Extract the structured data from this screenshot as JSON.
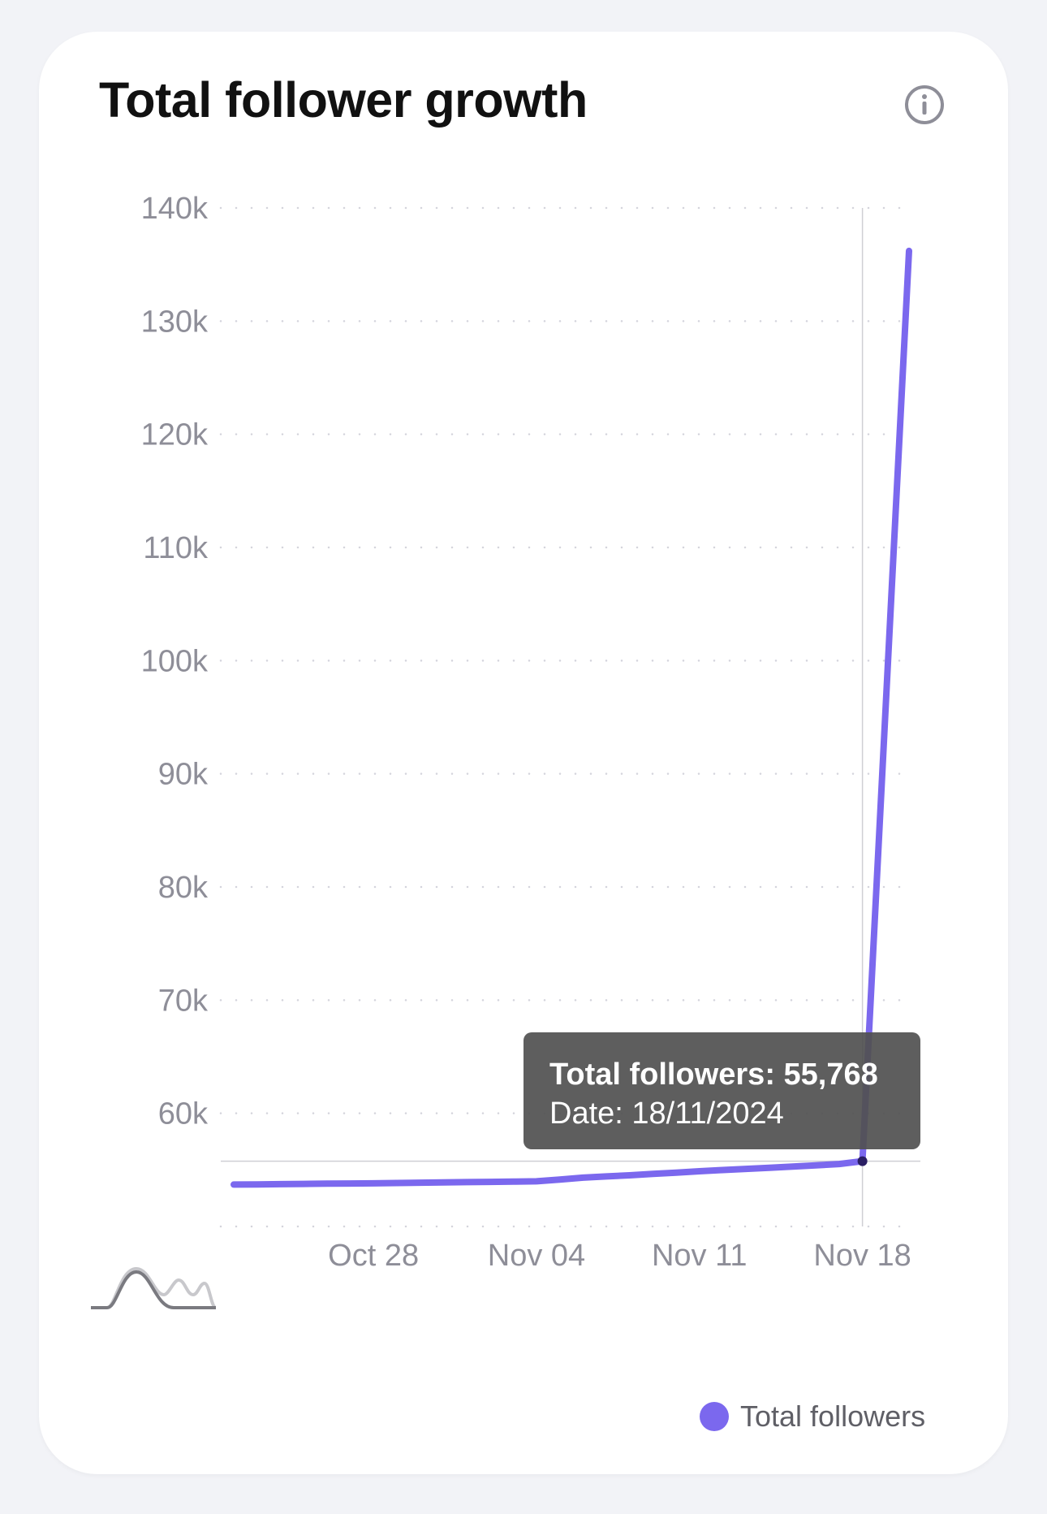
{
  "header": {
    "title": "Total follower growth",
    "info_icon": "info-icon"
  },
  "tooltip": {
    "line1": "Total followers: 55,768",
    "line2": "Date: 18/11/2024"
  },
  "legend": {
    "label": "Total followers",
    "color": "#7b68ee"
  },
  "chart_type_toggle": {
    "icon": "area-chart-icon"
  },
  "colors": {
    "series": "#7b68ee",
    "series_highlight": "#2a1e63",
    "grid": "#d4d4dc",
    "axis_text": "#8e8e98",
    "tooltip_bg": "#505050"
  },
  "chart_data": {
    "type": "line",
    "title": "Total follower growth",
    "xlabel": "",
    "ylabel": "",
    "ylim": [
      50000,
      140000
    ],
    "grid": true,
    "legend_position": "bottom-right",
    "y_ticks": [
      60000,
      70000,
      80000,
      90000,
      100000,
      110000,
      120000,
      130000,
      140000
    ],
    "y_tick_labels": [
      "60k",
      "70k",
      "80k",
      "90k",
      "100k",
      "110k",
      "120k",
      "130k",
      "140k"
    ],
    "x_ticks": [
      "2024-10-28",
      "2024-11-04",
      "2024-11-11",
      "2024-11-18"
    ],
    "x_tick_labels": [
      "Oct 28",
      "Nov 04",
      "Nov 11",
      "Nov 18"
    ],
    "hover_x": "2024-11-18",
    "series": [
      {
        "name": "Total followers",
        "x": [
          "2024-10-22",
          "2024-10-23",
          "2024-10-24",
          "2024-10-25",
          "2024-10-26",
          "2024-10-27",
          "2024-10-28",
          "2024-10-29",
          "2024-10-30",
          "2024-10-31",
          "2024-11-01",
          "2024-11-02",
          "2024-11-03",
          "2024-11-04",
          "2024-11-05",
          "2024-11-06",
          "2024-11-07",
          "2024-11-08",
          "2024-11-09",
          "2024-11-10",
          "2024-11-11",
          "2024-11-12",
          "2024-11-13",
          "2024-11-14",
          "2024-11-15",
          "2024-11-16",
          "2024-11-17",
          "2024-11-18",
          "2024-11-19",
          "2024-11-20"
        ],
        "values": [
          53700,
          53720,
          53740,
          53760,
          53790,
          53800,
          53810,
          53840,
          53870,
          53900,
          53920,
          53940,
          53960,
          53990,
          54150,
          54310,
          54420,
          54520,
          54650,
          54760,
          54880,
          54990,
          55090,
          55180,
          55300,
          55400,
          55520,
          55768,
          96000,
          136200
        ]
      }
    ]
  }
}
